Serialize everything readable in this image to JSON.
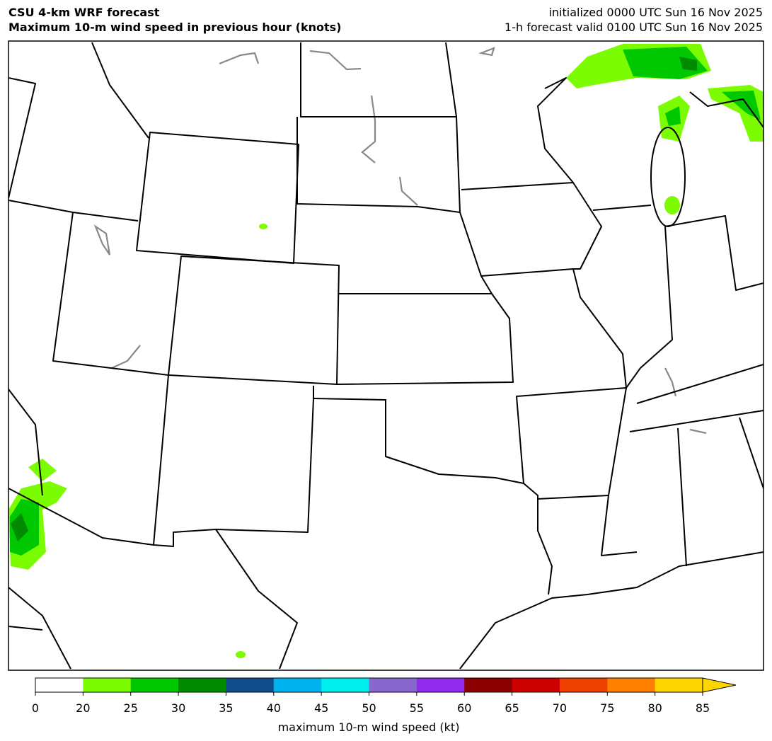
{
  "header": {
    "title_left": [
      "CSU 4-km WRF forecast",
      "Maximum 10-m wind speed in previous hour (knots)"
    ],
    "title_right": [
      "initialized 0000 UTC Sun 16 Nov 2025",
      "1-h forecast valid 0100 UTC Sun 16 Nov 2025"
    ]
  },
  "colorbar": {
    "ticks": [
      0,
      20,
      25,
      30,
      35,
      40,
      45,
      50,
      55,
      60,
      65,
      70,
      75,
      80,
      85
    ],
    "colors": [
      "#ffffff",
      "#7cfc00",
      "#00c800",
      "#008b00",
      "#104e8b",
      "#00b2ee",
      "#00eeee",
      "#8968cd",
      "#912cee",
      "#8b0000",
      "#cd0000",
      "#ee4000",
      "#ff7f00",
      "#ffd700"
    ],
    "extend_color": "#ffd700",
    "label": "maximum 10-m wind speed (kt)"
  }
}
